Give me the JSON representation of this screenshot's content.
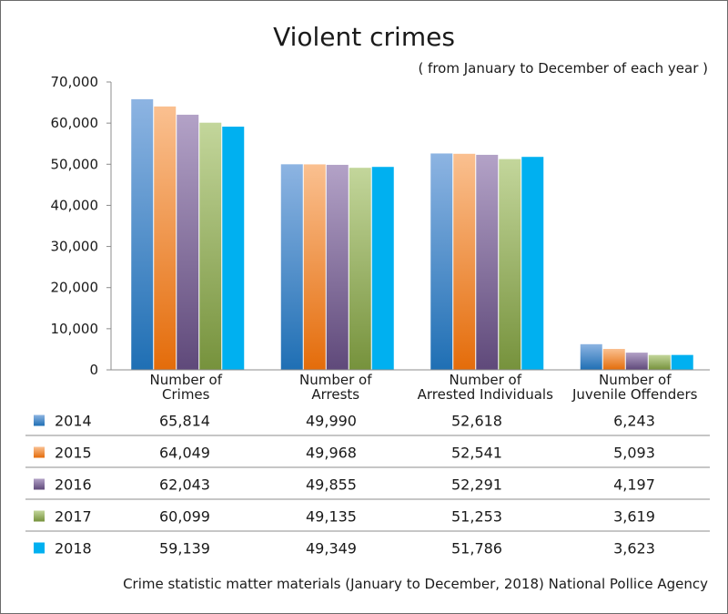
{
  "title": "Violent crimes",
  "subtitle": "( from January to December of each year )",
  "source": "Crime statistic matter materials (January to December, 2018) National Pollice Agency",
  "colors": {
    "2014": [
      "#8db4e2",
      "#1f6fb4"
    ],
    "2015": [
      "#fac090",
      "#e46c0a"
    ],
    "2016": [
      "#b3a2c7",
      "#5f497a"
    ],
    "2017": [
      "#c3d69b",
      "#76923c"
    ],
    "2018": [
      "#00b0f0",
      "#00b0f0"
    ]
  },
  "chart_data": {
    "type": "bar",
    "title": "Violent crimes",
    "subtitle": "( from January to December of each year )",
    "categories": [
      [
        "Number of",
        "Crimes"
      ],
      [
        "Number of",
        "Arrests"
      ],
      [
        "Number of",
        "Arrested Individuals"
      ],
      [
        "Number of",
        "Juvenile Offenders"
      ]
    ],
    "ylim": [
      0,
      70000
    ],
    "yticks": [
      "0",
      "10,000",
      "20,000",
      "30,000",
      "40,000",
      "50,000",
      "60,000",
      "70,000"
    ],
    "grid": false,
    "legend": "table-below",
    "series": [
      {
        "name": "2014",
        "values": [
          65814,
          49990,
          52618,
          6243
        ],
        "labels": [
          "65,814",
          "49,990",
          "52,618",
          "6,243"
        ]
      },
      {
        "name": "2015",
        "values": [
          64049,
          49968,
          52541,
          5093
        ],
        "labels": [
          "64,049",
          "49,968",
          "52,541",
          "5,093"
        ]
      },
      {
        "name": "2016",
        "values": [
          62043,
          49855,
          52291,
          4197
        ],
        "labels": [
          "62,043",
          "49,855",
          "52,291",
          "4,197"
        ]
      },
      {
        "name": "2017",
        "values": [
          60099,
          49135,
          51253,
          3619
        ],
        "labels": [
          "60,099",
          "49,135",
          "51,253",
          "3,619"
        ]
      },
      {
        "name": "2018",
        "values": [
          59139,
          49349,
          51786,
          3623
        ],
        "labels": [
          "59,139",
          "49,349",
          "51,786",
          "3,623"
        ]
      }
    ]
  }
}
